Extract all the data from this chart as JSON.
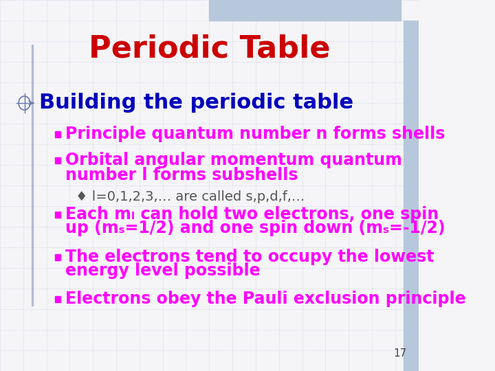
{
  "title": "Periodic Table",
  "title_color": "#CC0000",
  "title_fontsize": 32,
  "bg_color": "#F5F5F8",
  "slide_number": "17",
  "heading_color": "#0000BB",
  "heading_fontsize": 22,
  "bullet_color": "#FF00FF",
  "bullet_fontsize": 17,
  "sub_bullet_color": "#555555",
  "sub_bullet_fontsize": 14,
  "bullets": [
    "Principle quantum number n forms shells",
    "Orbital angular momentum quantum\nnumber l forms subshells"
  ],
  "sub_bullet": "♦ l=0,1,2,3,… are called s,p,d,f,…",
  "lower_bullets": [
    "Each mₗ can hold two electrons, one spin\nup (mₛ=1/2) and one spin down (mₛ=-1/2)",
    "The electrons tend to occupy the lowest\nenergy level possible",
    "Electrons obey the Pauli exclusion principle"
  ],
  "grid_color": "#AAAACC",
  "grid_alpha": 0.25,
  "top_bar_color": "#B8C8DC",
  "right_bar_color": "#B8C8DC",
  "left_bar_color": "#8899BB"
}
